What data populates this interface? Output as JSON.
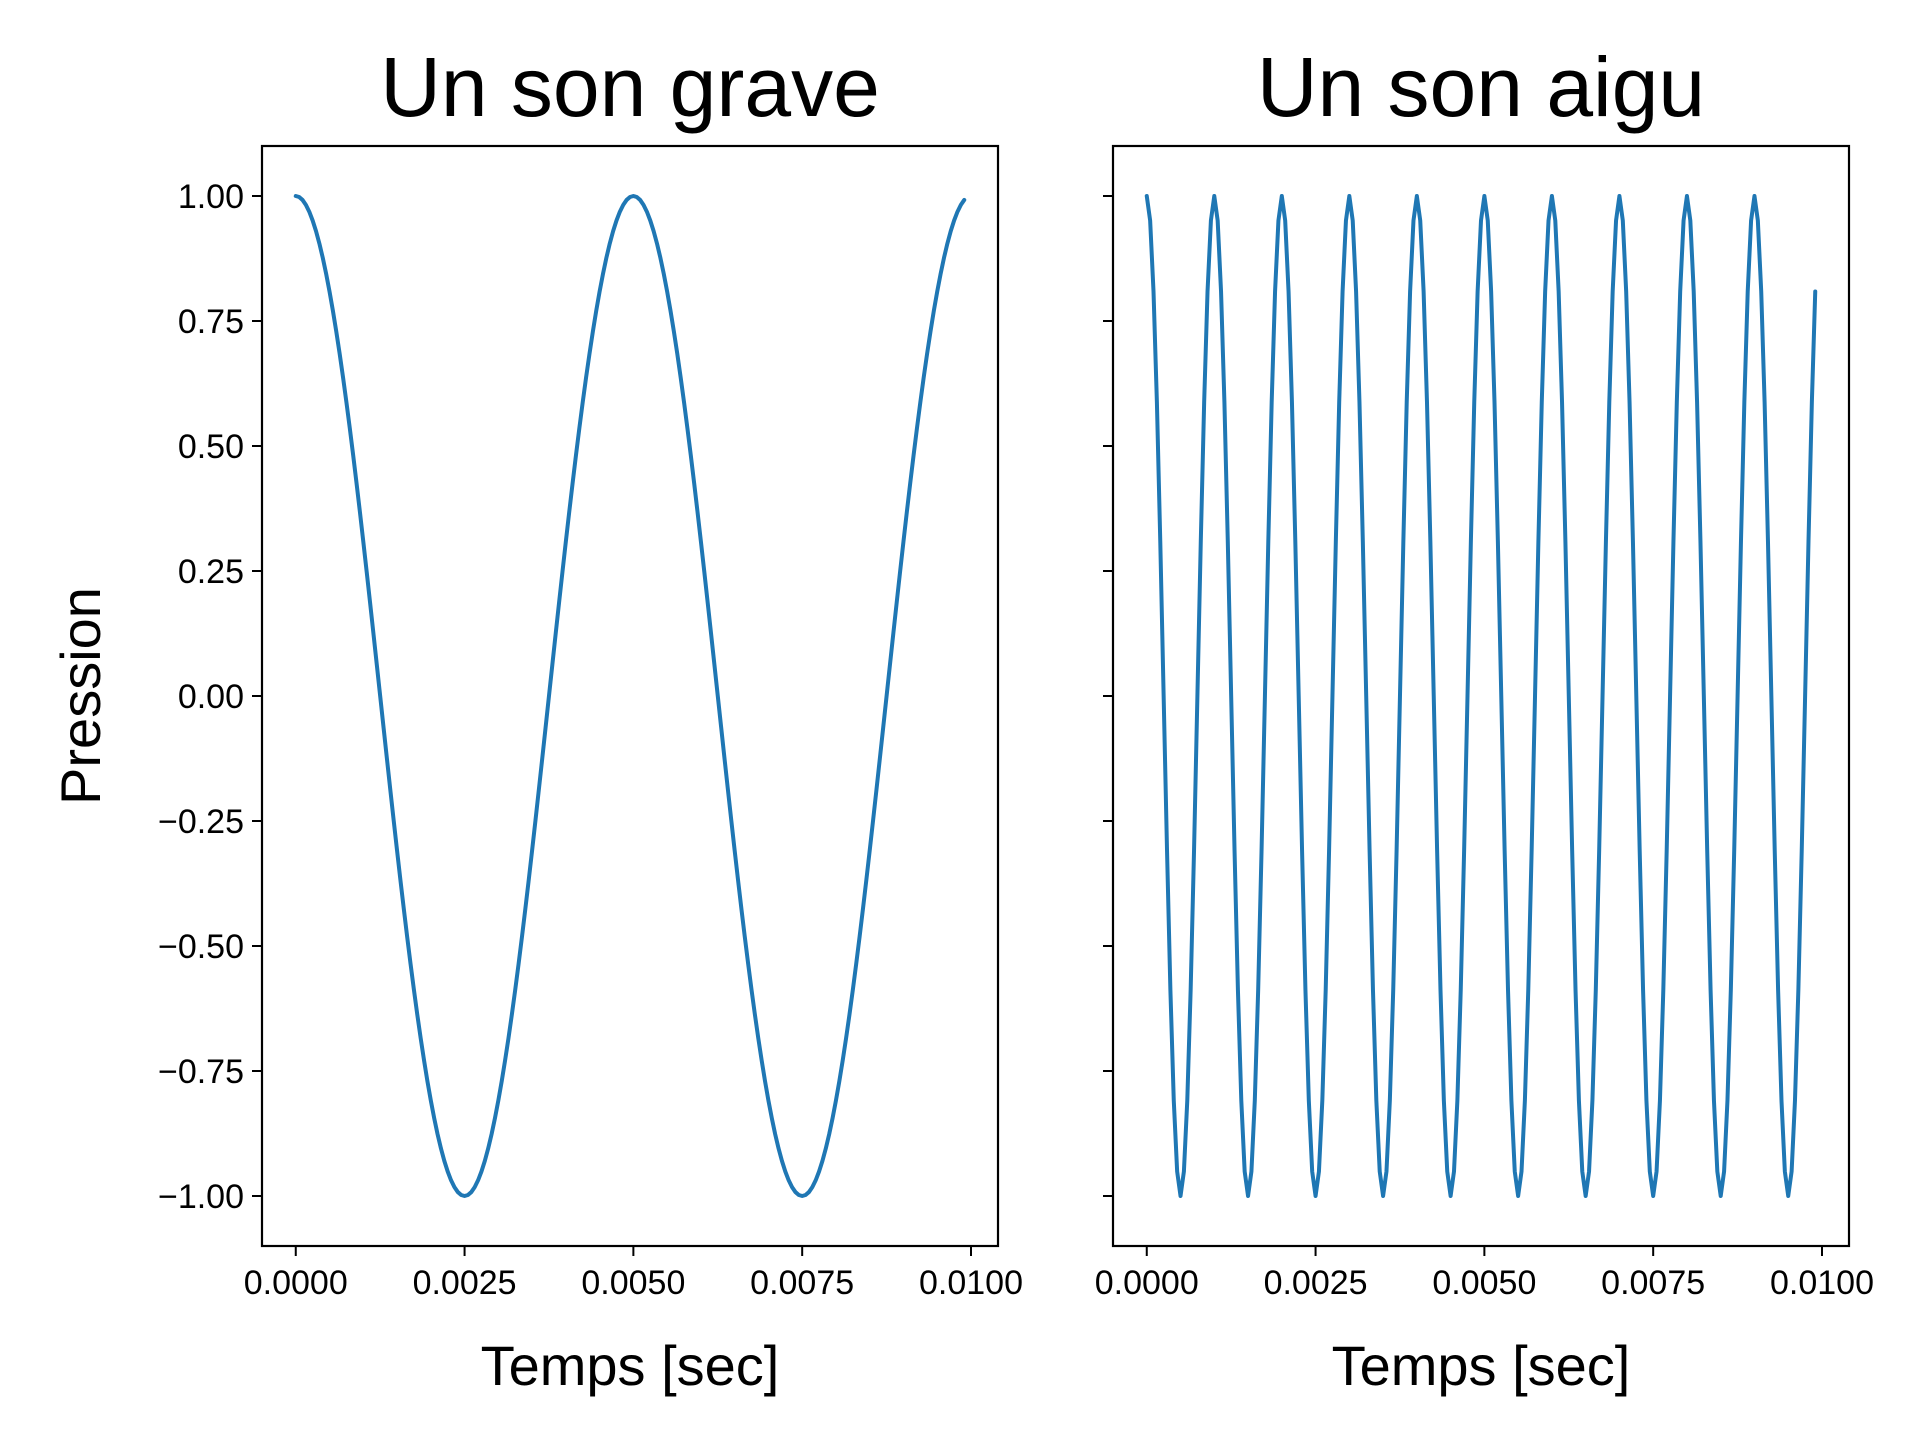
{
  "chart_data": [
    {
      "type": "line",
      "title": "Un son grave",
      "xlabel": "Temps [sec]",
      "ylabel": "Pression",
      "xlim": [
        -0.0005,
        0.0104
      ],
      "ylim": [
        -1.1,
        1.1
      ],
      "xticks": [
        0.0,
        0.0025,
        0.005,
        0.0075,
        0.01
      ],
      "xtick_labels": [
        "0.0000",
        "0.0025",
        "0.0050",
        "0.0075",
        "0.0100"
      ],
      "yticks": [
        1.0,
        0.75,
        0.5,
        0.25,
        0.0,
        -0.25,
        -0.5,
        -0.75,
        -1.0
      ],
      "ytick_labels": [
        "1.00",
        "0.75",
        "0.50",
        "0.25",
        "0.00",
        "−0.25",
        "−0.50",
        "−0.75",
        "−1.00"
      ],
      "show_ytick_labels": true,
      "grid": false,
      "series": [
        {
          "color": "#1f77b4",
          "function": "cos",
          "frequency_hz": 200,
          "amplitude": 1.0,
          "x_start": 0.0,
          "x_end": 0.0099,
          "x_step": 5e-05
        }
      ]
    },
    {
      "type": "line",
      "title": "Un son aigu",
      "xlabel": "Temps [sec]",
      "ylabel": "",
      "xlim": [
        -0.0005,
        0.0104
      ],
      "ylim": [
        -1.1,
        1.1
      ],
      "xticks": [
        0.0,
        0.0025,
        0.005,
        0.0075,
        0.01
      ],
      "xtick_labels": [
        "0.0000",
        "0.0025",
        "0.0050",
        "0.0075",
        "0.0100"
      ],
      "yticks": [
        1.0,
        0.75,
        0.5,
        0.25,
        0.0,
        -0.25,
        -0.5,
        -0.75,
        -1.0
      ],
      "ytick_labels": [],
      "show_ytick_labels": false,
      "grid": false,
      "series": [
        {
          "color": "#1f77b4",
          "function": "cos",
          "frequency_hz": 1000,
          "amplitude": 1.0,
          "x_start": 0.0,
          "x_end": 0.0099,
          "x_step": 5e-05
        }
      ]
    }
  ]
}
